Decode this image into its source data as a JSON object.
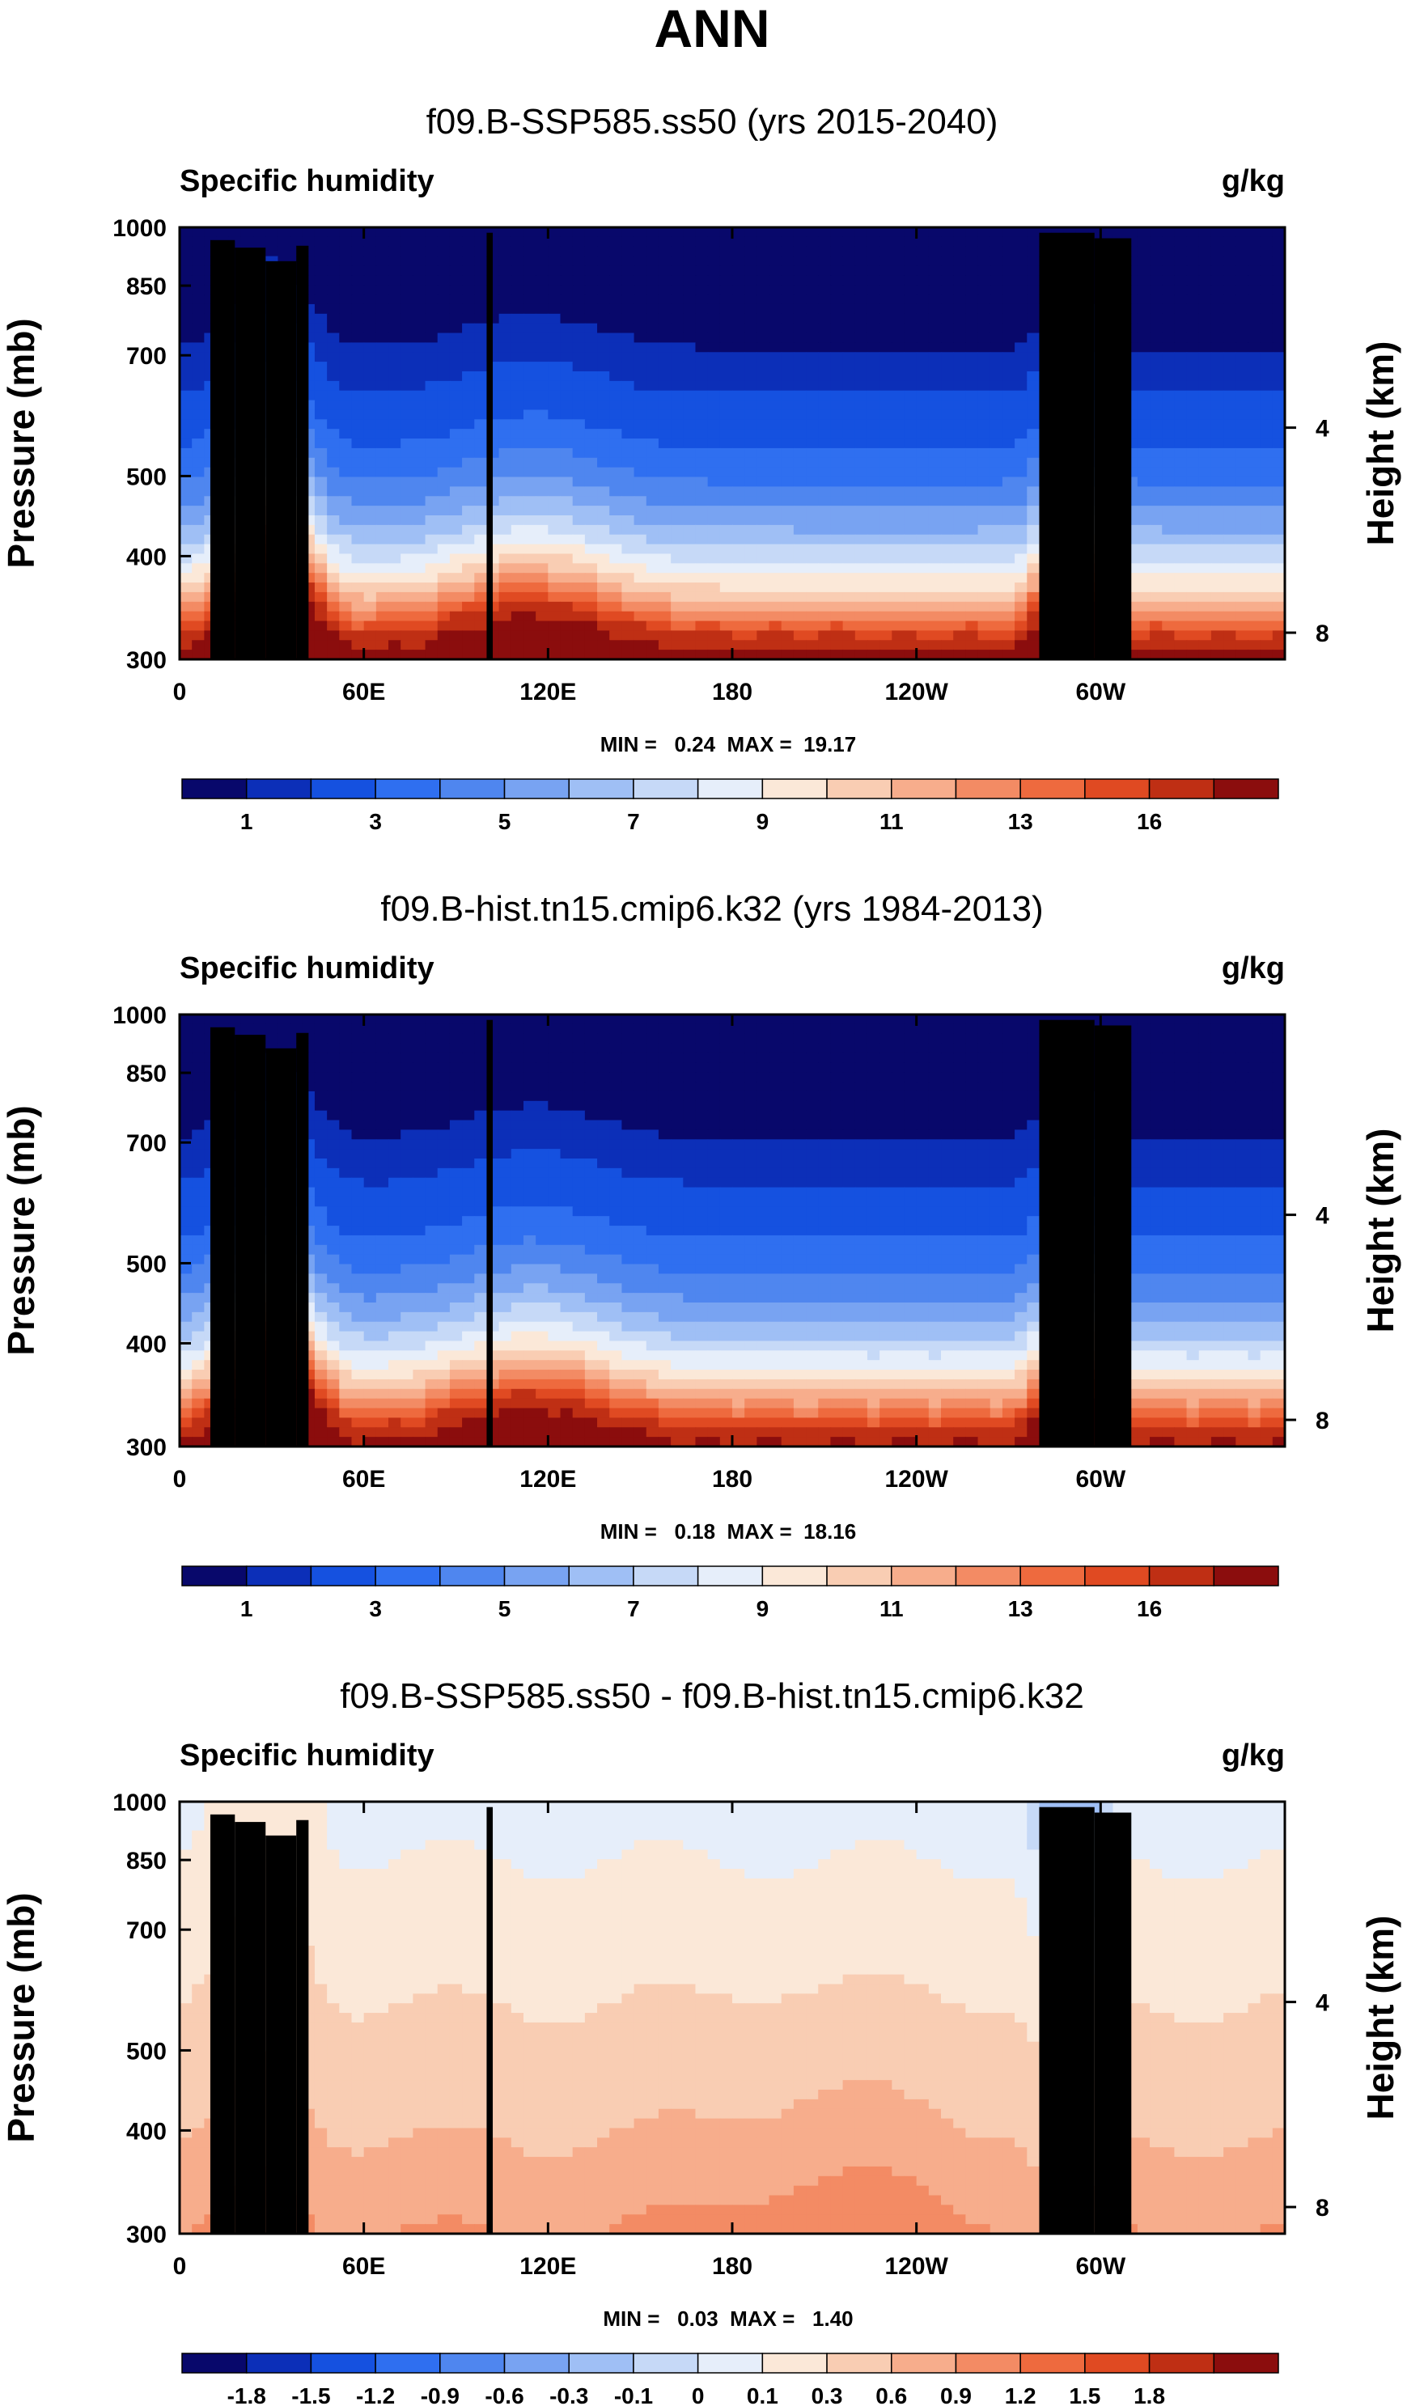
{
  "figure_title": "ANN",
  "chart_data": [
    {
      "type": "heatmap",
      "title": "f09.B-SSP585.ss50 (yrs 2015-2040)",
      "left_label": "Specific humidity",
      "right_label": "g/kg",
      "ylabel": "Pressure (mb)",
      "y2label": "Height (km)",
      "xticks": [
        "0",
        "60E",
        "120E",
        "180",
        "120W",
        "60W"
      ],
      "xtick_values": [
        0,
        60,
        120,
        180,
        240,
        300
      ],
      "xlim": [
        0,
        360
      ],
      "yticks": [
        "300",
        "400",
        "500",
        "700",
        "850",
        "1000"
      ],
      "ytick_values": [
        300,
        400,
        500,
        700,
        850,
        1000
      ],
      "ylim": [
        1000,
        300
      ],
      "y2ticks": [
        "8",
        "4"
      ],
      "y2tick_values": [
        8,
        4
      ],
      "min_text": "MIN =   0.24  MAX =  19.17",
      "min": 0.24,
      "max": 19.17,
      "colorbar_labels": [
        "1",
        "3",
        "5",
        "7",
        "9",
        "11",
        "13",
        "16"
      ],
      "levels": [
        0.5,
        1,
        2,
        3,
        4,
        5,
        6,
        7,
        8,
        9,
        10,
        11,
        12,
        13,
        14,
        16
      ],
      "colors": [
        "#08086b",
        "#0c2fb8",
        "#1551e0",
        "#2f6ff0",
        "#4f86ef",
        "#78a3f2",
        "#9fbff5",
        "#c6d9f7",
        "#e6eefa",
        "#fbe8d8",
        "#f9cdb3",
        "#f7ad8c",
        "#f38b64",
        "#ee6a3e",
        "#e04a22",
        "#bf2f14",
        "#8b0d0d"
      ]
    },
    {
      "type": "heatmap",
      "title": "f09.B-hist.tn15.cmip6.k32 (yrs 1984-2013)",
      "left_label": "Specific humidity",
      "right_label": "g/kg",
      "ylabel": "Pressure (mb)",
      "y2label": "Height (km)",
      "xticks": [
        "0",
        "60E",
        "120E",
        "180",
        "120W",
        "60W"
      ],
      "xtick_values": [
        0,
        60,
        120,
        180,
        240,
        300
      ],
      "xlim": [
        0,
        360
      ],
      "yticks": [
        "300",
        "400",
        "500",
        "700",
        "850",
        "1000"
      ],
      "ytick_values": [
        300,
        400,
        500,
        700,
        850,
        1000
      ],
      "ylim": [
        1000,
        300
      ],
      "y2ticks": [
        "8",
        "4"
      ],
      "y2tick_values": [
        8,
        4
      ],
      "min_text": "MIN =   0.18  MAX =  18.16",
      "min": 0.18,
      "max": 18.16,
      "colorbar_labels": [
        "1",
        "3",
        "5",
        "7",
        "9",
        "11",
        "13",
        "16"
      ],
      "levels": [
        0.5,
        1,
        2,
        3,
        4,
        5,
        6,
        7,
        8,
        9,
        10,
        11,
        12,
        13,
        14,
        16
      ],
      "colors": [
        "#08086b",
        "#0c2fb8",
        "#1551e0",
        "#2f6ff0",
        "#4f86ef",
        "#78a3f2",
        "#9fbff5",
        "#c6d9f7",
        "#e6eefa",
        "#fbe8d8",
        "#f9cdb3",
        "#f7ad8c",
        "#f38b64",
        "#ee6a3e",
        "#e04a22",
        "#bf2f14",
        "#8b0d0d"
      ]
    },
    {
      "type": "heatmap",
      "title": "f09.B-SSP585.ss50 - f09.B-hist.tn15.cmip6.k32",
      "left_label": "Specific humidity",
      "right_label": "g/kg",
      "ylabel": "Pressure (mb)",
      "y2label": "Height (km)",
      "xticks": [
        "0",
        "60E",
        "120E",
        "180",
        "120W",
        "60W"
      ],
      "xtick_values": [
        0,
        60,
        120,
        180,
        240,
        300
      ],
      "xlim": [
        0,
        360
      ],
      "yticks": [
        "300",
        "400",
        "500",
        "700",
        "850",
        "1000"
      ],
      "ytick_values": [
        300,
        400,
        500,
        700,
        850,
        1000
      ],
      "ylim": [
        1000,
        300
      ],
      "y2ticks": [
        "8",
        "4"
      ],
      "y2tick_values": [
        8,
        4
      ],
      "min_text": "MIN =   0.03  MAX =   1.40",
      "min": 0.03,
      "max": 1.4,
      "colorbar_labels": [
        "-1.8",
        "-1.5",
        "-1.2",
        "-0.9",
        "-0.6",
        "-0.3",
        "-0.1",
        "0",
        "0.1",
        "0.3",
        "0.6",
        "0.9",
        "1.2",
        "1.5",
        "1.8"
      ],
      "levels": [
        -1.8,
        -1.5,
        -1.2,
        -0.9,
        -0.6,
        -0.3,
        -0.1,
        0,
        0.1,
        0.3,
        0.6,
        0.9,
        1.2,
        1.5,
        1.8
      ],
      "colors": [
        "#08086b",
        "#0c2fb8",
        "#1551e0",
        "#2f6ff0",
        "#4f86ef",
        "#78a3f2",
        "#9fbff5",
        "#c6d9f7",
        "#e6eefa",
        "#fbe8d8",
        "#f9cdb3",
        "#f7ad8c",
        "#f38b64",
        "#ee6a3e",
        "#e04a22",
        "#bf2f14",
        "#8b0d0d"
      ]
    }
  ]
}
